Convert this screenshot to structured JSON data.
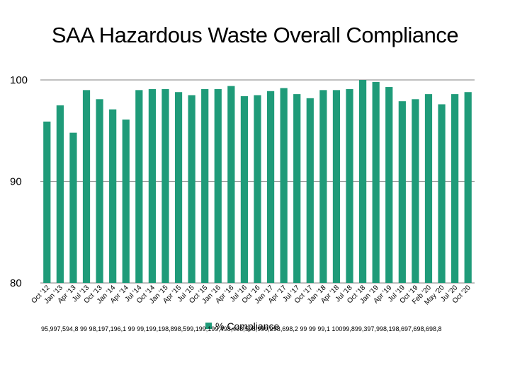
{
  "chart_data": {
    "type": "bar",
    "title": "SAA Hazardous Waste Overall Compliance",
    "xlabel": "",
    "ylabel": "",
    "ylim": [
      80,
      100
    ],
    "yticks": [
      80,
      90,
      100
    ],
    "grid": true,
    "legend_position": "bottom",
    "series": [
      {
        "name": "% Compliance",
        "color": "#1f9b79",
        "values": [
          95.9,
          97.5,
          94.8,
          99,
          98.1,
          97.1,
          96.1,
          99,
          99.1,
          99.1,
          98.8,
          98.5,
          99.1,
          99.1,
          99.4,
          98.4,
          98.5,
          98.9,
          99.2,
          98.6,
          98.2,
          99,
          99,
          99.1,
          100,
          99.8,
          99.3,
          97.9,
          98.1,
          98.6,
          97.6,
          98.6,
          98.8
        ]
      }
    ],
    "categories": [
      "Oct '12",
      "Jan '13",
      "Apr '13",
      "Jul '13",
      "Oct '13",
      "Jan '14",
      "Apr '14",
      "Jul '14",
      "Oct '14",
      "Jan '15",
      "Apr '15",
      "Jul '15",
      "Oct '15",
      "Jan '16",
      "Apr '16",
      "Jul '16",
      "Oct '16",
      "Jan '17",
      "Apr '17",
      "Jul '17",
      "Oct '17",
      "Jan '18",
      "Apr '18",
      "Jul '18",
      "Oct '18",
      "Jan '19",
      "Apr '19",
      "Jul '19",
      "Oct '19",
      "Feb '20",
      "May '20",
      "Jul '20",
      "Oct '20"
    ],
    "value_strip": "95,997,594,8 99 98,197,196,1 99 99,199,198,898,599,199,199,498,498,598,999,298,698,2 99 99 99,1 10099,899,397,998,198,697,698,698,8"
  }
}
